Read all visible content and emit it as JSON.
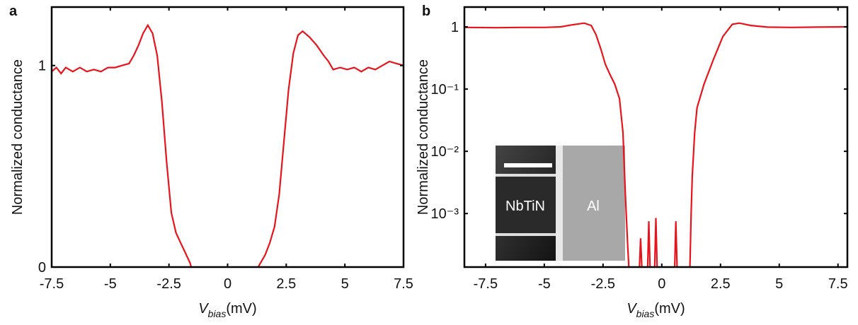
{
  "chart_data": [
    {
      "type": "line",
      "panel": "a",
      "ylabel": "Normalized conductance",
      "xlabel_symbol": "V",
      "xlabel_subscript": "bias",
      "xlabel_unit": "(mV)",
      "xlim": [
        -7.5,
        7.5
      ],
      "ylim": [
        0,
        1.29
      ],
      "log_y": false,
      "xticks": [
        {
          "value": -7.5,
          "label": "-7.5"
        },
        -5,
        {
          "value": -2.5,
          "label": "-2.5"
        },
        0,
        2.5,
        5,
        7.5
      ],
      "yticks": [
        0,
        1
      ],
      "series": [
        {
          "color": "#e8141b",
          "x": [
            -7.5,
            -7.3,
            -7.1,
            -6.9,
            -6.6,
            -6.3,
            -6.0,
            -5.7,
            -5.4,
            -5.1,
            -4.8,
            -4.5,
            -4.2,
            -4.0,
            -3.8,
            -3.6,
            -3.4,
            -3.2,
            -3.0,
            -2.8,
            -2.6,
            -2.4,
            -2.2,
            -2.0,
            -1.8,
            -1.6,
            -1.55,
            0,
            1.3,
            1.4,
            1.6,
            1.8,
            2.0,
            2.2,
            2.4,
            2.6,
            2.8,
            3.0,
            3.2,
            3.5,
            3.8,
            4.1,
            4.3,
            4.5,
            4.8,
            5.1,
            5.4,
            5.7,
            6.0,
            6.3,
            6.6,
            6.9,
            7.2,
            7.5
          ],
          "values": [
            0.97,
            0.99,
            0.96,
            0.99,
            0.97,
            0.99,
            0.97,
            0.98,
            0.97,
            0.99,
            0.99,
            1.0,
            1.01,
            1.05,
            1.1,
            1.16,
            1.2,
            1.16,
            1.05,
            0.82,
            0.52,
            0.27,
            0.17,
            0.12,
            0.07,
            0.02,
            0.0,
            null,
            0.0,
            0.02,
            0.06,
            0.12,
            0.2,
            0.36,
            0.62,
            0.88,
            1.06,
            1.15,
            1.17,
            1.14,
            1.1,
            1.05,
            1.02,
            0.98,
            0.99,
            0.98,
            0.99,
            0.97,
            0.99,
            0.98,
            1.0,
            1.02,
            1.01,
            1.0
          ]
        }
      ]
    },
    {
      "type": "line",
      "panel": "b",
      "ylabel": "Normalized conductance",
      "xlabel_symbol": "V",
      "xlabel_subscript": "bias",
      "xlabel_unit": "(mV)",
      "xlim": [
        -8.4,
        7.9
      ],
      "ylim": [
        0.000138,
        2.08
      ],
      "log_y": true,
      "xticks": [
        {
          "value": -7.5,
          "label": "-7.5"
        },
        -5,
        {
          "value": -2.5,
          "label": "-2.5"
        },
        0,
        2.5,
        5,
        7.5
      ],
      "yticks": [
        {
          "value": 0.001,
          "label": "10⁻³"
        },
        {
          "value": 0.01,
          "label": "10⁻²"
        },
        {
          "value": 0.1,
          "label": "10⁻¹"
        },
        1
      ],
      "annotations": [
        "NbTiN",
        "Al"
      ],
      "series": [
        {
          "color": "#e8141b",
          "x": [
            -8.4,
            -7.0,
            -6.0,
            -5.0,
            -4.3,
            -3.8,
            -3.3,
            -3.0,
            -2.8,
            -2.6,
            -2.4,
            -2.2,
            -2.0,
            -1.8,
            -1.65,
            -1.55,
            -1.45,
            -1.4,
            -1.3,
            -0.95,
            -0.9,
            -0.85,
            -0.7,
            -0.6,
            -0.55,
            -0.5,
            -0.4,
            -0.3,
            -0.25,
            -0.2,
            0.1,
            0.55,
            0.6,
            0.65,
            1.0,
            1.2,
            1.25,
            1.3,
            1.4,
            1.5,
            1.8,
            2.2,
            2.6,
            3.0,
            3.3,
            3.8,
            4.5,
            5.5,
            6.5,
            7.9
          ],
          "values": [
            0.98,
            0.97,
            0.98,
            0.98,
            1.0,
            1.08,
            1.15,
            1.05,
            0.75,
            0.45,
            0.25,
            0.17,
            0.12,
            0.07,
            0.02,
            0.002,
            0.0003,
            0.00014,
            null,
            0.00014,
            0.0004,
            0.00014,
            null,
            0.00014,
            0.00075,
            0.00014,
            null,
            0.00014,
            0.00085,
            0.00014,
            null,
            0.00014,
            0.00075,
            0.00014,
            null,
            0.00014,
            0.001,
            0.004,
            0.02,
            0.05,
            0.12,
            0.3,
            0.7,
            1.1,
            1.15,
            1.05,
            0.99,
            0.98,
            0.99,
            1.0
          ]
        }
      ]
    }
  ]
}
